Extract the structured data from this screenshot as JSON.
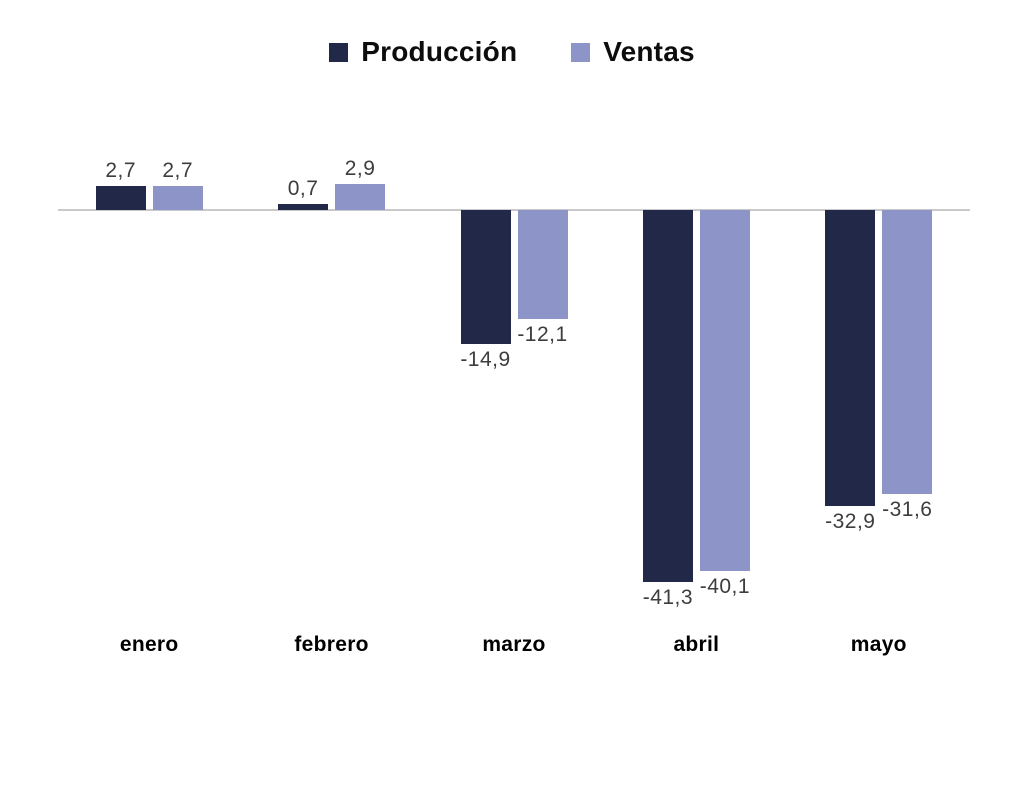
{
  "chart_data": {
    "type": "bar",
    "categories": [
      "enero",
      "febrero",
      "marzo",
      "abril",
      "mayo"
    ],
    "series": [
      {
        "name": "Producción",
        "color": "#222848",
        "values": [
          2.7,
          0.7,
          -14.9,
          -41.3,
          -32.9
        ]
      },
      {
        "name": "Ventas",
        "color": "#8D94C7",
        "values": [
          2.7,
          2.9,
          -12.1,
          -40.1,
          -31.6
        ]
      }
    ],
    "value_label_format": "decimal-comma",
    "ylim": [
      -45,
      5
    ],
    "grid": false,
    "legend_position": "top",
    "baseline": 0,
    "baseline_color": "#C9C9C9",
    "value_label_color": "#3D3D3D",
    "category_label_color": "#000000"
  }
}
